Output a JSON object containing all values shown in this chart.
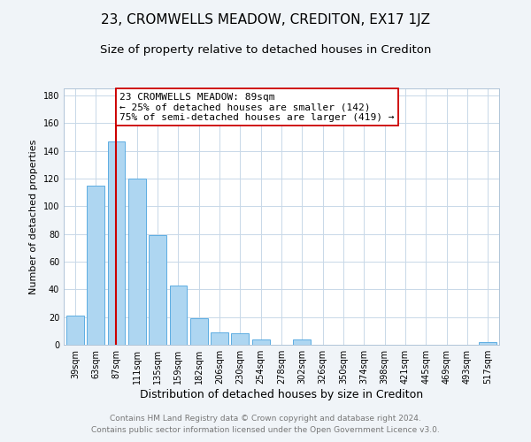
{
  "title": "23, CROMWELLS MEADOW, CREDITON, EX17 1JZ",
  "subtitle": "Size of property relative to detached houses in Crediton",
  "xlabel": "Distribution of detached houses by size in Crediton",
  "ylabel": "Number of detached properties",
  "bar_labels": [
    "39sqm",
    "63sqm",
    "87sqm",
    "111sqm",
    "135sqm",
    "159sqm",
    "182sqm",
    "206sqm",
    "230sqm",
    "254sqm",
    "278sqm",
    "302sqm",
    "326sqm",
    "350sqm",
    "374sqm",
    "398sqm",
    "421sqm",
    "445sqm",
    "469sqm",
    "493sqm",
    "517sqm"
  ],
  "bar_values": [
    21,
    115,
    147,
    120,
    79,
    43,
    19,
    9,
    8,
    4,
    0,
    4,
    0,
    0,
    0,
    0,
    0,
    0,
    0,
    0,
    2
  ],
  "bar_color": "#aed6f1",
  "bar_edge_color": "#5dade2",
  "vline_x": 2.0,
  "vline_color": "#cc0000",
  "annotation_title": "23 CROMWELLS MEADOW: 89sqm",
  "annotation_line1": "← 25% of detached houses are smaller (142)",
  "annotation_line2": "75% of semi-detached houses are larger (419) →",
  "annotation_box_edge": "#cc0000",
  "ylim": [
    0,
    185
  ],
  "yticks": [
    0,
    20,
    40,
    60,
    80,
    100,
    120,
    140,
    160,
    180
  ],
  "footer1": "Contains HM Land Registry data © Crown copyright and database right 2024.",
  "footer2": "Contains public sector information licensed under the Open Government Licence v3.0.",
  "bg_color": "#f0f4f8",
  "plot_bg_color": "#ffffff",
  "grid_color": "#c8d8e8",
  "title_fontsize": 11,
  "subtitle_fontsize": 9.5,
  "xlabel_fontsize": 9,
  "ylabel_fontsize": 8,
  "tick_fontsize": 7,
  "footer_fontsize": 6.5,
  "annotation_fontsize": 8
}
